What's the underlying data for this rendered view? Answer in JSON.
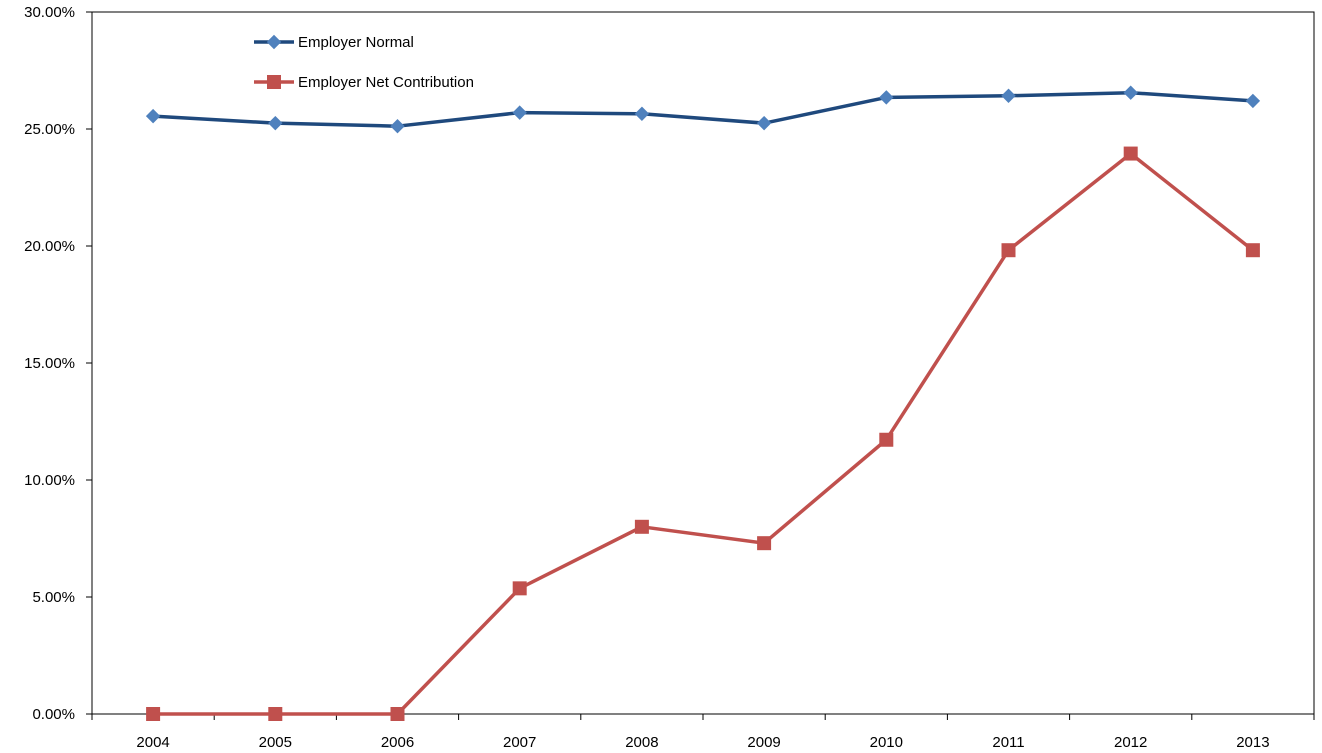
{
  "chart_data": {
    "type": "line",
    "x": [
      "2004",
      "2005",
      "2006",
      "2007",
      "2008",
      "2009",
      "2010",
      "2011",
      "2012",
      "2013"
    ],
    "ylim": [
      0,
      0.3
    ],
    "ytick_values": [
      0,
      0.05,
      0.1,
      0.15,
      0.2,
      0.25,
      0.3
    ],
    "ytick_labels": [
      "0.00%",
      "5.00%",
      "10.00%",
      "15.00%",
      "20.00%",
      "25.00%",
      "30.00%"
    ],
    "grid": false,
    "legend_position": "top-left",
    "series": [
      {
        "name": "Employer Normal",
        "color": "#1F497D",
        "marker_color": "#4F81BD",
        "marker": "diamond",
        "values": [
          0.2555,
          0.2525,
          0.2512,
          0.257,
          0.2565,
          0.2525,
          0.2635,
          0.2642,
          0.2655,
          0.262
        ]
      },
      {
        "name": "Employer Net Contribution",
        "color": "#C0504D",
        "marker_color": "#C0504D",
        "marker": "square",
        "values": [
          0.0,
          0.0,
          0.0,
          0.0537,
          0.08,
          0.073,
          0.1172,
          0.1982,
          0.2395,
          0.1982
        ]
      }
    ]
  }
}
